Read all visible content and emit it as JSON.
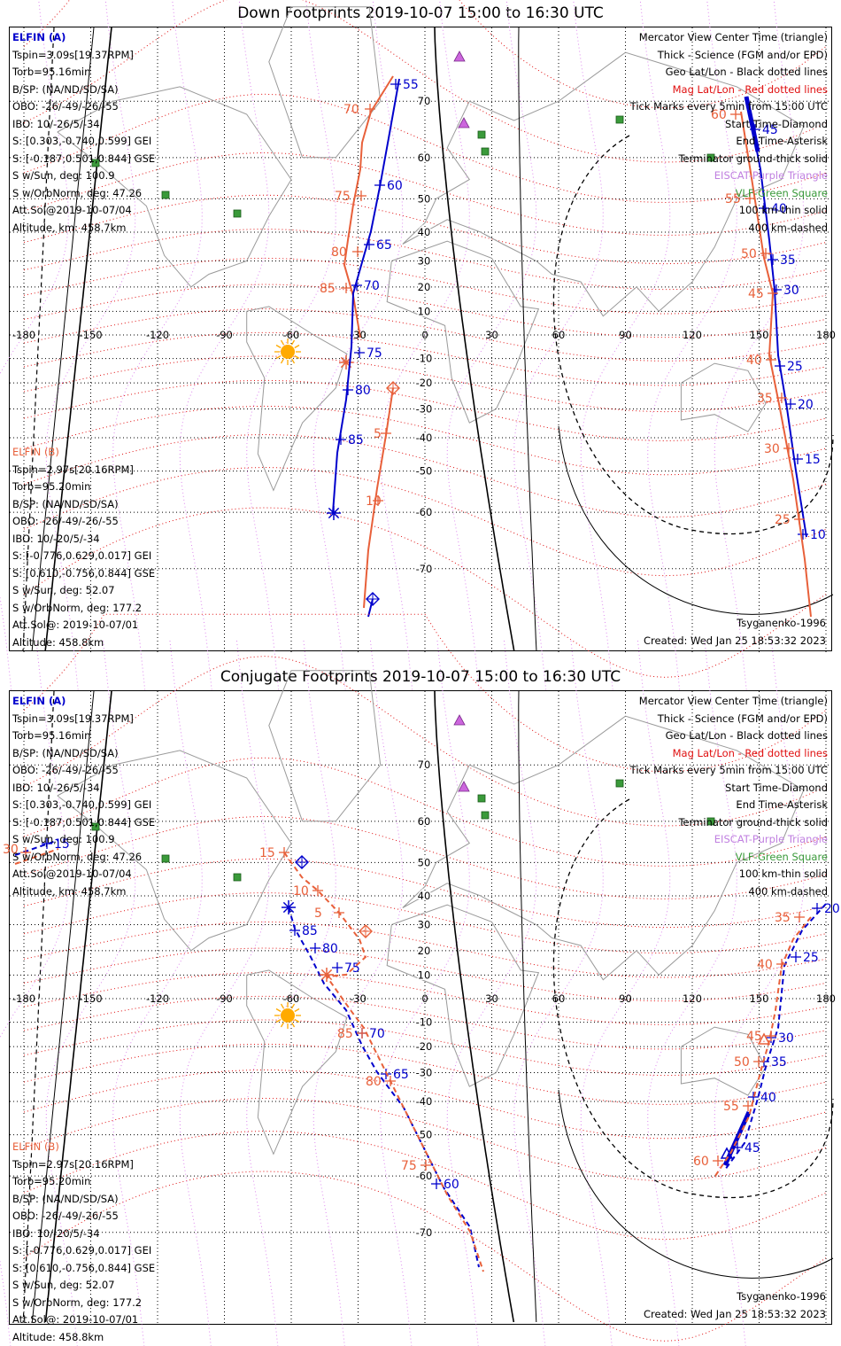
{
  "panels": [
    {
      "title": "Down Footprints 2019-10-07 15:00 to 16:30 UTC",
      "type": "down"
    },
    {
      "title": "Conjugate Footprints 2019-10-07 15:00 to 16:30 UTC",
      "type": "conjugate"
    }
  ],
  "elfin_a": {
    "title": "ELFIN (A)",
    "lines": [
      "Tspin=3.09s[19.37RPM]",
      "Torb=95.16min",
      "B/SP: (NA/ND/SD/SA)",
      "OBO: -26/-49/-26/-55",
      "IBO: 10/-26/5/-34",
      "S: [0.303,-0.740,0.599] GEI",
      "S: [-0.187,0.501,0.844] GSE",
      "S w/Sun, deg: 100.9",
      "S w/OrbNorm, deg: 47.26",
      "Att.Sol@2019-10-07/04",
      "Altitude, km: 458.7km"
    ]
  },
  "elfin_b": {
    "title": "ELFIN (B)",
    "lines": [
      "Tspin=2.97s[20.16RPM]",
      "Torb=95.20min",
      "B/SP: (NA/ND/SD/SA)",
      "OBO: -26/-49/-26/-55",
      "IBO: 10/-20/5/-34",
      "S: [-0.776,0.629,0.017] GEI",
      "S: [0.610,-0.756,0.844] GSE",
      "S w/Sun, deg: 52.07",
      "S w/OrbNorm, deg: 177.2",
      "Att.Sol@: 2019-10-07/01",
      "Altitude: 458.8km"
    ]
  },
  "legend": {
    "mercator": "Mercator View Center Time (triangle)",
    "thick": "Thick - Science (FGM and/or EPD)",
    "geo": "Geo Lat/Lon - Black dotted lines",
    "mag": "Mag Lat/Lon - Red dotted lines",
    "ticks": "Tick Marks every 5min from 15:00 UTC",
    "start": "Start Time-Diamond",
    "end": "End Time-Asterisk",
    "terminator": "Terminator ground-thick solid",
    "eiscat": "EISCAT-Purple Triangle",
    "vlf": "VLF-Green Square",
    "km100": "100 km-thin solid",
    "km400": "400 km-dashed"
  },
  "model": "Tsyganenko-1996",
  "created": "Created: Wed Jan 25 18:53:32 2023",
  "map": {
    "lon_ticks": [
      -180,
      -150,
      -120,
      -90,
      -60,
      -30,
      0,
      30,
      60,
      90,
      120,
      150,
      180
    ],
    "lon_labels": [
      "-180",
      "-150",
      "-120",
      "-90",
      "-60",
      "-30",
      "0",
      "30",
      "60",
      "90",
      "120",
      "150",
      "180"
    ],
    "lat_labels": [
      "70",
      "60",
      "50",
      "40",
      "30",
      "20",
      "10",
      "0",
      "-10",
      "-20",
      "-30",
      "-40",
      "-50",
      "-60",
      "-70"
    ],
    "colors": {
      "elfin_a": "#0000cc",
      "elfin_b": "#e8603a",
      "mag_grid": "#e01010",
      "geo_grid": "#000000",
      "eiscat": "#cc66dd",
      "vlf": "#3a9a3a",
      "sun": "#ffaa00"
    }
  },
  "tracks": {
    "down": {
      "a_west_labels": [
        "55",
        "60",
        "65",
        "70",
        "75",
        "80",
        "85"
      ],
      "a_east_labels": [
        "45",
        "40",
        "35",
        "30",
        "25",
        "20",
        "15",
        "10"
      ],
      "b_west_labels": [
        "70",
        "75",
        "80",
        "85",
        "5",
        "10"
      ],
      "b_east_labels": [
        "60",
        "55",
        "50",
        "45",
        "40",
        "35",
        "30",
        "25"
      ]
    },
    "conjugate": {
      "a_west_labels": [
        "85",
        "80",
        "75",
        "70",
        "65",
        "60"
      ],
      "a_east_labels": [
        "20",
        "25",
        "30",
        "35",
        "40",
        "45"
      ],
      "a_far_labels": [
        "15"
      ],
      "b_west_labels": [
        "15",
        "10",
        "5",
        "85",
        "80",
        "75"
      ],
      "b_east_labels": [
        "35",
        "40",
        "45",
        "50",
        "55",
        "60"
      ],
      "b_far_labels": [
        "30"
      ]
    }
  }
}
